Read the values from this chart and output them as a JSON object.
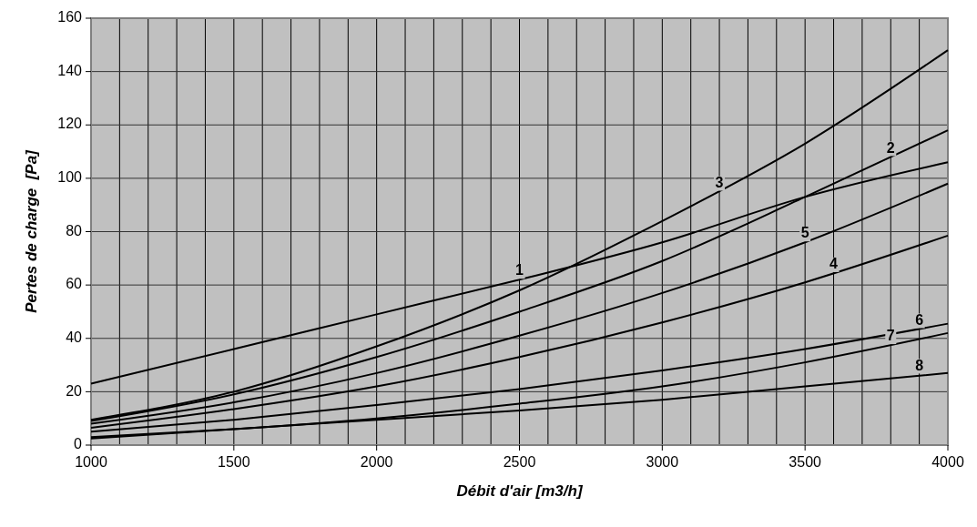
{
  "chart_data": {
    "type": "line",
    "xlabel": "Débit d'air [m3/h]",
    "ylabel": "Pertes de charge  [Pa]",
    "x": [
      1000,
      1500,
      2000,
      2500,
      3000,
      3500,
      4000
    ],
    "series": [
      {
        "color": "#000000",
        "values": [
          23,
          36,
          49,
          62,
          76,
          93,
          106
        ]
      },
      {
        "color": "#000000",
        "values": [
          9,
          19,
          33,
          50,
          69,
          93,
          118
        ]
      },
      {
        "color": "#000000",
        "values": [
          9.5,
          20,
          37,
          58,
          84,
          113,
          148
        ]
      },
      {
        "color": "#000000",
        "values": [
          6.5,
          13.5,
          22,
          33,
          46,
          61,
          78.5
        ]
      },
      {
        "color": "#000000",
        "values": [
          8,
          16,
          27,
          41,
          57,
          76,
          98
        ]
      },
      {
        "color": "#000000",
        "values": [
          5,
          9.5,
          15,
          21,
          28,
          36,
          45.5
        ]
      },
      {
        "color": "#000000",
        "values": [
          3,
          6,
          10,
          15.5,
          22,
          31,
          42
        ]
      },
      {
        "color": "#000000",
        "values": [
          2.5,
          6,
          9.5,
          13,
          17,
          22,
          27
        ]
      }
    ],
    "annotations": [
      {
        "text": "1",
        "x": 2500,
        "y": 62
      },
      {
        "text": "2",
        "x": 3800,
        "y": 108
      },
      {
        "text": "3",
        "x": 3200,
        "y": 95
      },
      {
        "text": "4",
        "x": 3600,
        "y": 64.5
      },
      {
        "text": "5",
        "x": 3500,
        "y": 76
      },
      {
        "text": "6",
        "x": 3900,
        "y": 43.5
      },
      {
        "text": "7",
        "x": 3800,
        "y": 37.5
      },
      {
        "text": "8",
        "x": 3900,
        "y": 26.5
      }
    ],
    "xlim": [
      1000,
      4000
    ],
    "xticks": [
      1000,
      {
        "value": 1100,
        "label": null
      },
      {
        "value": 1200,
        "label": null
      },
      {
        "value": 1300,
        "label": null
      },
      {
        "value": 1400,
        "label": null
      },
      1500,
      {
        "value": 1600,
        "label": null
      },
      {
        "value": 1700,
        "label": null
      },
      {
        "value": 1800,
        "label": null
      },
      {
        "value": 1900,
        "label": null
      },
      2000,
      {
        "value": 2100,
        "label": null
      },
      {
        "value": 2200,
        "label": null
      },
      {
        "value": 2300,
        "label": null
      },
      {
        "value": 2400,
        "label": null
      },
      2500,
      {
        "value": 2600,
        "label": null
      },
      {
        "value": 2700,
        "label": null
      },
      {
        "value": 2800,
        "label": null
      },
      {
        "value": 2900,
        "label": null
      },
      3000,
      {
        "value": 3100,
        "label": null
      },
      {
        "value": 3200,
        "label": null
      },
      {
        "value": 3300,
        "label": null
      },
      {
        "value": 3400,
        "label": null
      },
      3500,
      {
        "value": 3600,
        "label": null
      },
      {
        "value": 3700,
        "label": null
      },
      {
        "value": 3800,
        "label": null
      },
      {
        "value": 3900,
        "label": null
      },
      4000
    ],
    "ylim": [
      0,
      160
    ],
    "yticks": [
      0,
      20,
      40,
      60,
      80,
      100,
      120,
      140,
      160
    ],
    "grid": true,
    "marker": "none",
    "line_style": "solid"
  }
}
